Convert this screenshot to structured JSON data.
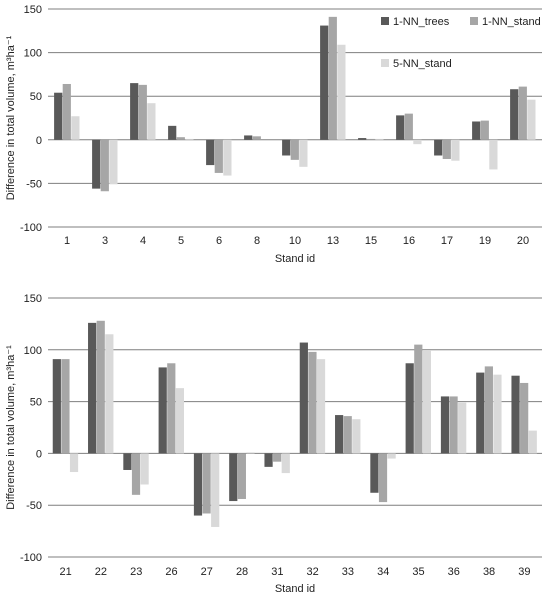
{
  "colors": {
    "grid": "#7f7f7f"
  },
  "legend": [
    {
      "name": "1-NN_trees",
      "color": "#595959"
    },
    {
      "name": "1-NN_stand",
      "color": "#a6a6a6"
    },
    {
      "name": "5-NN_stand",
      "color": "#d9d9d9"
    }
  ],
  "chart_data": [
    {
      "type": "bar",
      "xlabel": "Stand id",
      "ylabel": "Difference in total volume, m³ha⁻¹",
      "ylim": [
        -100,
        150
      ],
      "yticks": [
        150,
        100,
        50,
        0,
        -50,
        -100
      ],
      "grid": true,
      "legend_position": "top-right",
      "categories": [
        "1",
        "3",
        "4",
        "5",
        "6",
        "8",
        "10",
        "13",
        "15",
        "16",
        "17",
        "19",
        "20"
      ],
      "series": [
        {
          "name": "1-NN_trees",
          "values": [
            54,
            -56,
            65,
            16,
            -29,
            5,
            -18,
            131,
            2,
            28,
            -18,
            21,
            58
          ]
        },
        {
          "name": "1-NN_stand",
          "values": [
            64,
            -59,
            63,
            3,
            -38,
            4,
            -23,
            141,
            1,
            30,
            -22,
            22,
            61
          ]
        },
        {
          "name": "5-NN_stand",
          "values": [
            27,
            -51,
            42,
            1,
            -41,
            0,
            -31,
            109,
            1,
            -5,
            -24,
            -34,
            46
          ]
        }
      ]
    },
    {
      "type": "bar",
      "xlabel": "Stand id",
      "ylabel": "Difference in total volume, m³ha⁻¹",
      "ylim": [
        -100,
        150
      ],
      "yticks": [
        150,
        100,
        50,
        0,
        -50,
        -100
      ],
      "grid": true,
      "categories": [
        "21",
        "22",
        "23",
        "26",
        "27",
        "28",
        "31",
        "32",
        "33",
        "34",
        "35",
        "36",
        "38",
        "39"
      ],
      "series": [
        {
          "name": "1-NN_trees",
          "values": [
            91,
            126,
            -16,
            83,
            -60,
            -46,
            -13,
            107,
            37,
            -38,
            87,
            55,
            78,
            75
          ]
        },
        {
          "name": "1-NN_stand",
          "values": [
            91,
            128,
            -40,
            87,
            -58,
            -44,
            -8,
            98,
            36,
            -47,
            105,
            55,
            84,
            68
          ]
        },
        {
          "name": "5-NN_stand",
          "values": [
            -18,
            115,
            -30,
            63,
            -71,
            1,
            -19,
            91,
            33,
            -5,
            99,
            49,
            76,
            22
          ]
        }
      ]
    }
  ]
}
